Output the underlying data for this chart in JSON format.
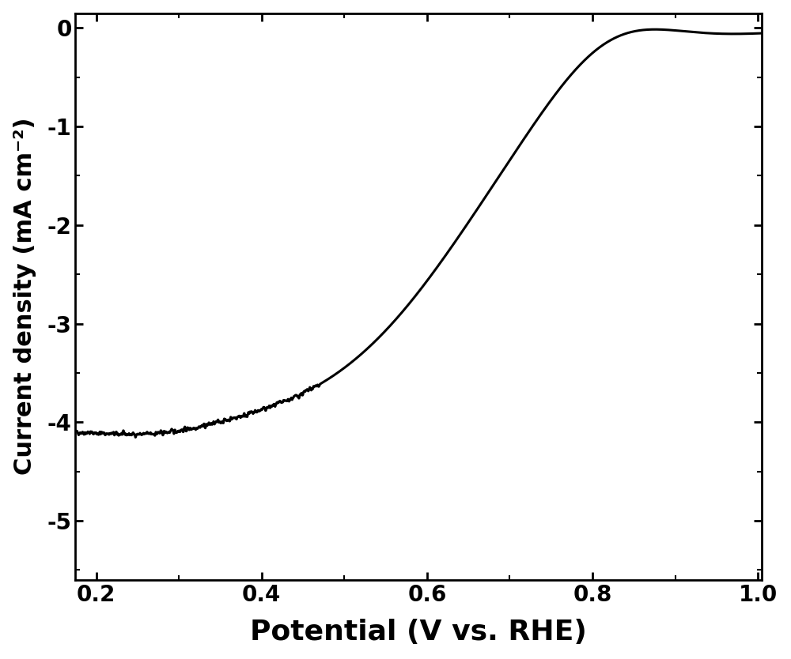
{
  "title": "",
  "xlabel": "Potential (V vs. RHE)",
  "ylabel": "Current density (mA cm⁻²)",
  "xlim": [
    0.175,
    1.005
  ],
  "ylim": [
    -5.6,
    0.15
  ],
  "xticks": [
    0.2,
    0.4,
    0.6,
    0.8,
    1.0
  ],
  "yticks": [
    0,
    -1,
    -2,
    -3,
    -4,
    -5
  ],
  "line_color": "#000000",
  "line_width": 2.2,
  "background_color": "#ffffff",
  "noise_amplitude": 0.025,
  "noise_seed": 42,
  "xlabel_fontsize": 26,
  "ylabel_fontsize": 22,
  "tick_fontsize": 20,
  "tick_fontweight": "bold",
  "label_fontweight": "bold"
}
